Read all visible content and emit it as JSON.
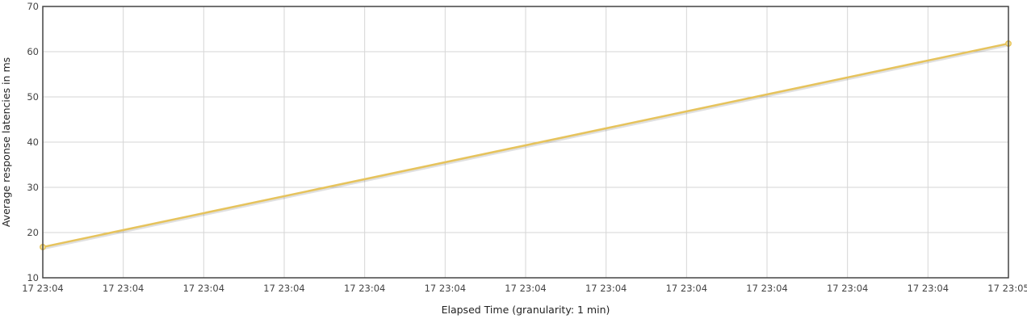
{
  "chart_data": {
    "type": "line",
    "title": "",
    "xlabel": "Elapsed Time (granularity: 1 min)",
    "ylabel": "Average response latencies in ms",
    "ylim": [
      10,
      70
    ],
    "yticks": [
      10,
      20,
      30,
      40,
      50,
      60,
      70
    ],
    "xticks": [
      "17 23:04",
      "17 23:04",
      "17 23:04",
      "17 23:04",
      "17 23:04",
      "17 23:04",
      "17 23:04",
      "17 23:04",
      "17 23:04",
      "17 23:04",
      "17 23:04",
      "17 23:04",
      "17 23:05"
    ],
    "grid": true,
    "legend": "none",
    "series": [
      {
        "color": "#e6c35c",
        "points": [
          {
            "x": "17 23:04",
            "y": 16.8
          },
          {
            "x": "17 23:05",
            "y": 61.8
          }
        ]
      }
    ]
  }
}
